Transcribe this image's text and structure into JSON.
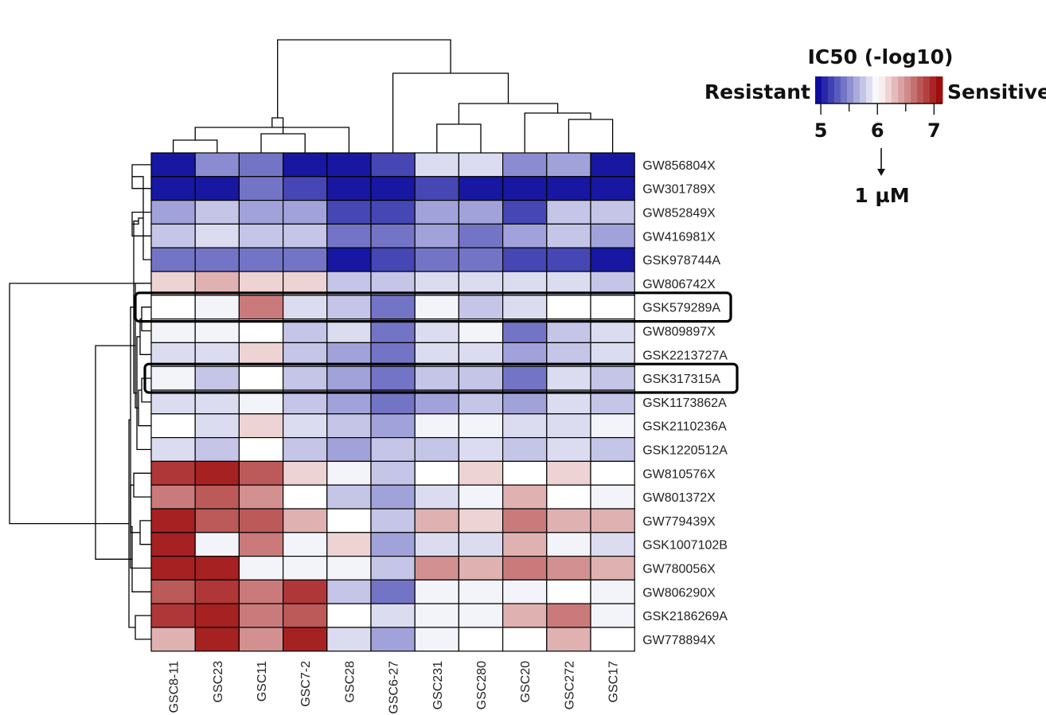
{
  "chart_data": {
    "type": "heatmap",
    "title": "",
    "rows": [
      "GW856804X",
      "GW301789X",
      "GW852849X",
      "GW416981X",
      "GSK978744A",
      "GW806742X",
      "GSK579289A",
      "GW809897X",
      "GSK2213727A",
      "GSK317315A",
      "GSK1173862A",
      "GSK2110236A",
      "GSK1220512A",
      "GW810576X",
      "GW801372X",
      "GW779439X",
      "GSK1007102B",
      "GW780056X",
      "GW806290X",
      "GSK2186269A",
      "GW778894X"
    ],
    "columns": [
      "GSC8-11",
      "GSC23",
      "GSC11",
      "GSC7-2",
      "GSC28",
      "GSC6-27",
      "GSC231",
      "GSC280",
      "GSC20",
      "GSC272",
      "GSC17"
    ],
    "values": [
      [
        5.0,
        5.5,
        5.4,
        5.0,
        5.0,
        5.2,
        5.85,
        5.85,
        5.5,
        5.6,
        5.0
      ],
      [
        5.0,
        5.0,
        5.4,
        5.2,
        5.0,
        5.0,
        5.2,
        5.0,
        5.0,
        5.0,
        5.0
      ],
      [
        5.6,
        5.75,
        5.6,
        5.6,
        5.2,
        5.2,
        5.6,
        5.6,
        5.2,
        5.75,
        5.75
      ],
      [
        5.75,
        5.85,
        5.75,
        5.75,
        5.4,
        5.4,
        5.6,
        5.4,
        5.6,
        5.75,
        5.6
      ],
      [
        5.4,
        5.4,
        5.4,
        5.4,
        5.0,
        5.2,
        5.4,
        5.4,
        5.2,
        5.2,
        5.0
      ],
      [
        6.2,
        6.35,
        6.2,
        6.2,
        5.75,
        5.75,
        5.85,
        5.85,
        5.85,
        5.85,
        5.75
      ],
      [
        6.0,
        5.95,
        6.6,
        5.85,
        5.75,
        5.4,
        5.95,
        5.75,
        5.85,
        6.0,
        6.0
      ],
      [
        5.95,
        5.95,
        6.0,
        5.75,
        5.85,
        5.4,
        5.85,
        5.95,
        5.4,
        5.75,
        5.85
      ],
      [
        5.85,
        5.85,
        6.2,
        5.75,
        5.6,
        5.4,
        5.85,
        5.85,
        5.6,
        5.75,
        5.85
      ],
      [
        5.95,
        5.75,
        6.0,
        5.75,
        5.6,
        5.4,
        5.75,
        5.75,
        5.4,
        5.85,
        5.75
      ],
      [
        5.85,
        5.85,
        5.95,
        5.75,
        5.6,
        5.4,
        5.6,
        5.75,
        5.6,
        5.85,
        5.75
      ],
      [
        6.0,
        5.85,
        6.2,
        5.85,
        5.75,
        5.6,
        5.95,
        5.95,
        5.85,
        5.85,
        5.95
      ],
      [
        5.85,
        5.75,
        6.0,
        5.75,
        5.6,
        5.75,
        5.75,
        5.85,
        5.75,
        5.85,
        5.75
      ],
      [
        6.9,
        7.0,
        6.75,
        6.2,
        5.95,
        5.75,
        6.0,
        6.2,
        6.0,
        6.2,
        6.0
      ],
      [
        6.6,
        6.75,
        6.5,
        6.0,
        5.75,
        5.6,
        5.85,
        5.95,
        6.35,
        6.0,
        5.95
      ],
      [
        7.0,
        6.75,
        6.75,
        6.35,
        6.0,
        5.75,
        6.35,
        6.2,
        6.6,
        6.35,
        6.35
      ],
      [
        7.0,
        5.95,
        6.6,
        5.95,
        6.2,
        5.6,
        5.85,
        5.85,
        6.35,
        5.95,
        5.85
      ],
      [
        7.0,
        7.0,
        5.95,
        5.95,
        5.95,
        5.75,
        6.5,
        6.35,
        6.6,
        6.5,
        6.35
      ],
      [
        6.75,
        6.9,
        6.6,
        6.9,
        5.75,
        5.4,
        5.95,
        5.95,
        5.95,
        6.0,
        5.95
      ],
      [
        6.9,
        7.0,
        6.6,
        6.75,
        6.0,
        5.85,
        5.95,
        5.95,
        6.35,
        6.6,
        5.95
      ],
      [
        6.35,
        7.0,
        6.5,
        7.0,
        5.85,
        5.6,
        5.95,
        6.0,
        6.0,
        6.35,
        6.0
      ]
    ],
    "scale": {
      "title": "IC50 (-log10)",
      "low_label": "Resistant",
      "high_label": "Sensitive",
      "min": 4.9,
      "max": 7.15,
      "mid": 6.0,
      "low_color": "#000099",
      "mid_color": "#ffffff",
      "high_color": "#990000",
      "ticks": [
        "5",
        "6",
        "7"
      ],
      "tick_values": [
        5,
        6,
        7
      ],
      "annotation_label": "1 µM",
      "annotation_value": 6
    },
    "highlighted_rows": [
      "GSK579289A",
      "GSK317315A"
    ],
    "col_dendrogram": [
      [
        1,
        2
      ],
      [
        3,
        4
      ],
      [
        12,
        5
      ],
      [
        13,
        14
      ],
      [
        7,
        8
      ],
      [
        10,
        11
      ],
      [
        9,
        17
      ],
      [
        16,
        18
      ],
      [
        6,
        19
      ],
      [
        15,
        20
      ]
    ],
    "row_dendrogram": [
      [
        1,
        2
      ],
      [
        3,
        4
      ],
      [
        22,
        5
      ],
      [
        23,
        24
      ],
      [
        7,
        8
      ],
      [
        10,
        11
      ],
      [
        26,
        9
      ],
      [
        27,
        12
      ],
      [
        13,
        28
      ],
      [
        29,
        6
      ],
      [
        30,
        25
      ],
      [
        16,
        17
      ],
      [
        14,
        15
      ],
      [
        32,
        33
      ],
      [
        18,
        34
      ],
      [
        20,
        21
      ],
      [
        19,
        36
      ],
      [
        35,
        37
      ],
      [
        31,
        38
      ],
      [
        39,
        6
      ]
    ]
  }
}
